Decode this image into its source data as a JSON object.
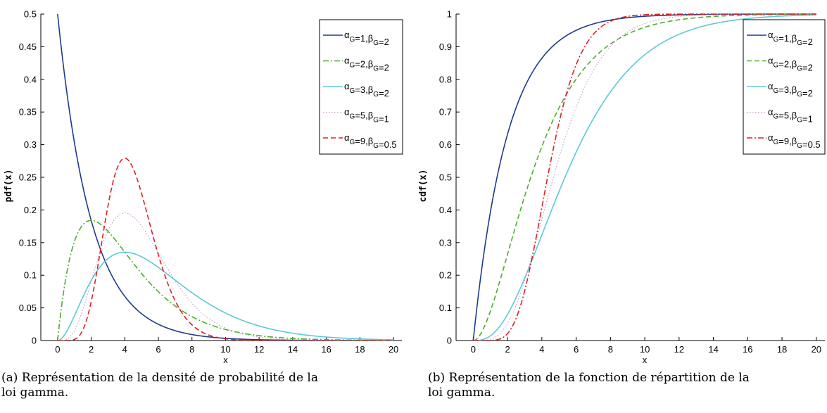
{
  "chart_data": [
    {
      "type": "line",
      "title": "",
      "xlabel": "x",
      "ylabel": "pdf(x)",
      "xlim": [
        -1,
        20.5
      ],
      "ylim": [
        0,
        0.5
      ],
      "xticks": [
        0,
        2,
        4,
        6,
        8,
        10,
        12,
        14,
        16,
        18,
        20
      ],
      "yticks": [
        0,
        0.05,
        0.1,
        0.15,
        0.2,
        0.25,
        0.3,
        0.35,
        0.4,
        0.45,
        0.5
      ],
      "xtick_labels": [
        "0",
        "2",
        "4",
        "6",
        "8",
        "10",
        "12",
        "14",
        "16",
        "18",
        "20"
      ],
      "ytick_labels": [
        "0",
        "0.05",
        "0.1",
        "0.15",
        "0.2",
        "0.25",
        "0.3",
        "0.35",
        "0.4",
        "0.45",
        "0.5"
      ],
      "grid": false,
      "legend_position": "top-right",
      "function": "gamma pdf",
      "series": [
        {
          "name": "α_G=1,β_G=2",
          "alpha": 1,
          "beta": 2,
          "color": "#1f3a93",
          "dash": "solid"
        },
        {
          "name": "α_G=2,β_G=2",
          "alpha": 2,
          "beta": 2,
          "color": "#4caf2a",
          "dash": "dashdot"
        },
        {
          "name": "α_G=3,β_G=2",
          "alpha": 3,
          "beta": 2,
          "color": "#5ec8d8",
          "dash": "solid"
        },
        {
          "name": "α_G=5,β_G=1",
          "alpha": 5,
          "beta": 1,
          "color": "#c090c0",
          "dash": "dotted"
        },
        {
          "name": "α_G=9,β_G=0.5",
          "alpha": 9,
          "beta": 0.5,
          "color": "#e02020",
          "dash": "dashed"
        }
      ]
    },
    {
      "type": "line",
      "title": "",
      "xlabel": "x",
      "ylabel": "cdf(x)",
      "xlim": [
        -1,
        20.5
      ],
      "ylim": [
        0,
        1
      ],
      "xticks": [
        0,
        2,
        4,
        6,
        8,
        10,
        12,
        14,
        16,
        18,
        20
      ],
      "yticks": [
        0,
        0.1,
        0.2,
        0.3,
        0.4,
        0.5,
        0.6,
        0.7,
        0.8,
        0.9,
        1
      ],
      "xtick_labels": [
        "0",
        "2",
        "4",
        "6",
        "8",
        "10",
        "12",
        "14",
        "16",
        "18",
        "20"
      ],
      "ytick_labels": [
        "0",
        "0.1",
        "0.2",
        "0.3",
        "0.4",
        "0.5",
        "0.6",
        "0.7",
        "0.8",
        "0.9",
        "1"
      ],
      "grid": false,
      "legend_position": "top-right",
      "function": "gamma cdf",
      "series": [
        {
          "name": "α_G=1,β_G=2",
          "alpha": 1,
          "beta": 2,
          "color": "#1f3a93",
          "dash": "solid"
        },
        {
          "name": "α_G=2,β_G=2",
          "alpha": 2,
          "beta": 2,
          "color": "#4caf2a",
          "dash": "dashed"
        },
        {
          "name": "α_G=3,β_G=2",
          "alpha": 3,
          "beta": 2,
          "color": "#5ec8d8",
          "dash": "solid"
        },
        {
          "name": "α_G=5,β_G=1",
          "alpha": 5,
          "beta": 1,
          "color": "#c090c0",
          "dash": "dotted"
        },
        {
          "name": "α_G=9,β_G=0.5",
          "alpha": 9,
          "beta": 0.5,
          "color": "#e02020",
          "dash": "dashdot"
        }
      ]
    }
  ],
  "captions": [
    {
      "line1": "(a) Représentation de la densité de probabilité de la",
      "line2": "loi gamma."
    },
    {
      "line1": "(b) Représentation de la fonction de répartition de la",
      "line2": "loi gamma."
    }
  ]
}
